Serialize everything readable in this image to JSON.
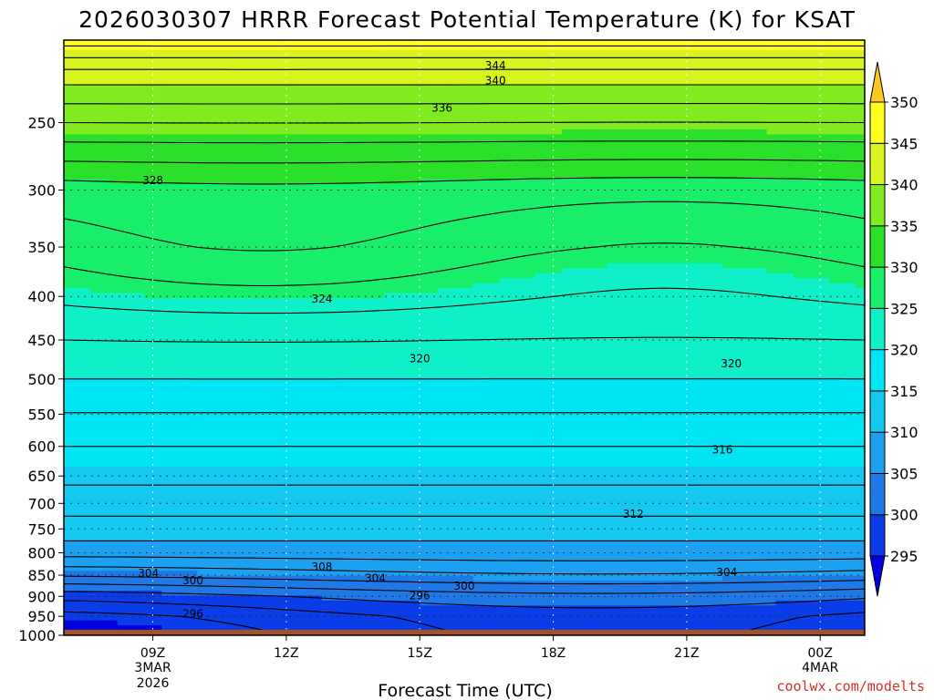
{
  "chart_data": {
    "type": "heatmap",
    "title": "2026030307 HRRR Forecast Potential Temperature (K) for KSAT",
    "xlabel": "Forecast Time (UTC)",
    "ylabel": "",
    "y_scale": "log-pressure",
    "ylim": [
      1000,
      200
    ],
    "xlim_hours": [
      7,
      25
    ],
    "y_ticks": [
      250,
      300,
      350,
      400,
      450,
      500,
      550,
      600,
      650,
      700,
      750,
      800,
      850,
      900,
      950,
      1000
    ],
    "x_ticks": [
      {
        "hour": 9,
        "label": "09Z",
        "sub1": "3MAR",
        "sub2": "2026"
      },
      {
        "hour": 12,
        "label": "12Z",
        "sub1": "",
        "sub2": ""
      },
      {
        "hour": 15,
        "label": "15Z",
        "sub1": "",
        "sub2": ""
      },
      {
        "hour": 18,
        "label": "18Z",
        "sub1": "",
        "sub2": ""
      },
      {
        "hour": 21,
        "label": "21Z",
        "sub1": "",
        "sub2": ""
      },
      {
        "hour": 24,
        "label": "00Z",
        "sub1": "4MAR",
        "sub2": ""
      }
    ],
    "colorbar": {
      "levels": [
        295,
        300,
        305,
        310,
        315,
        320,
        325,
        330,
        335,
        340,
        345,
        350
      ],
      "colors": [
        "#0000e0",
        "#0a3ce8",
        "#1e78e6",
        "#1ea0f0",
        "#14c8f0",
        "#00e6f5",
        "#10f0c8",
        "#18ee6a",
        "#2ae02a",
        "#80ec20",
        "#d8f420",
        "#ffff20",
        "#ffc820"
      ],
      "extend": "both"
    },
    "grid": "dotted",
    "ground_color": "#a0522d",
    "surface_pressure": 985,
    "theta_profile": {
      "pressure": [
        1000,
        950,
        900,
        850,
        800,
        750,
        700,
        650,
        600,
        500,
        450,
        400,
        350,
        300,
        250,
        220,
        200
      ],
      "theta": [
        296,
        297,
        300,
        305,
        309,
        311,
        313,
        314.5,
        316,
        320,
        322,
        324.5,
        327,
        329,
        336,
        341,
        347
      ]
    },
    "contour_labels": [
      {
        "hour": 16.7,
        "pressure": 214,
        "value": "344"
      },
      {
        "hour": 16.7,
        "pressure": 223,
        "value": "340"
      },
      {
        "hour": 15.5,
        "pressure": 240,
        "value": "336"
      },
      {
        "hour": 9.0,
        "pressure": 292,
        "value": "328"
      },
      {
        "hour": 12.8,
        "pressure": 402,
        "value": "324"
      },
      {
        "hour": 15.0,
        "pressure": 473,
        "value": "320"
      },
      {
        "hour": 22.0,
        "pressure": 479,
        "value": "320"
      },
      {
        "hour": 21.8,
        "pressure": 605,
        "value": "316"
      },
      {
        "hour": 19.8,
        "pressure": 720,
        "value": "312"
      },
      {
        "hour": 12.8,
        "pressure": 830,
        "value": "308"
      },
      {
        "hour": 8.9,
        "pressure": 845,
        "value": "304"
      },
      {
        "hour": 14.0,
        "pressure": 856,
        "value": "304"
      },
      {
        "hour": 21.9,
        "pressure": 843,
        "value": "304"
      },
      {
        "hour": 9.9,
        "pressure": 862,
        "value": "300"
      },
      {
        "hour": 16.0,
        "pressure": 874,
        "value": "300"
      },
      {
        "hour": 15.0,
        "pressure": 897,
        "value": "296"
      },
      {
        "hour": 9.9,
        "pressure": 942,
        "value": "296"
      }
    ]
  },
  "credit": "coolwx.com/modelts"
}
